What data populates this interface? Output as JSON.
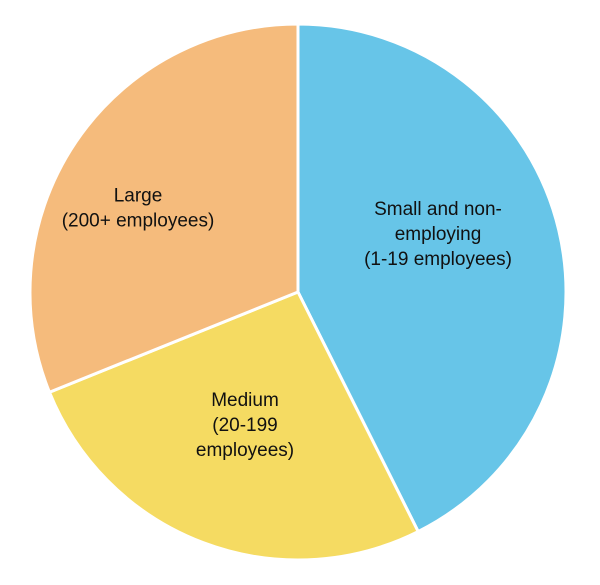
{
  "chart_data": {
    "type": "pie",
    "title": "",
    "start_angle_deg": 0,
    "direction": "clockwise",
    "slices": [
      {
        "label_lines": [
          "Small and non-",
          "employing",
          "(1-19 employees)"
        ],
        "value": 42.6,
        "color": "#67C5E8"
      },
      {
        "label_lines": [
          "Medium",
          "(20-199",
          "employees)"
        ],
        "value": 26.3,
        "color": "#F5DB62"
      },
      {
        "label_lines": [
          "Large",
          "(200+ employees)"
        ],
        "value": 31.1,
        "color": "#F5BB7C"
      }
    ]
  }
}
